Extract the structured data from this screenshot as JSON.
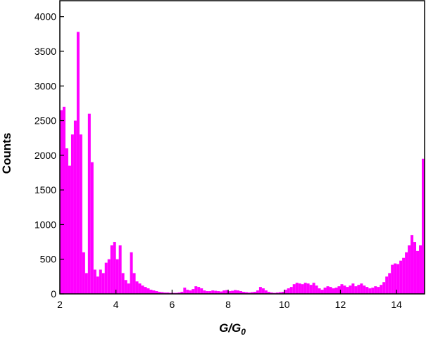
{
  "chart_data": {
    "type": "histogram",
    "xlabel": {
      "text": "G/G",
      "subscript": "0"
    },
    "ylabel": "Counts",
    "color": "#ff00ff",
    "xlim": [
      2,
      15
    ],
    "ylim": [
      0,
      4230
    ],
    "xticks": [
      2,
      4,
      6,
      8,
      10,
      12,
      14
    ],
    "yticks": [
      0,
      500,
      1000,
      1500,
      2000,
      2500,
      3000,
      3500,
      4000
    ],
    "bins": [
      2,
      2.1,
      2.2,
      2.3,
      2.4,
      2.5,
      2.6,
      2.7,
      2.8,
      2.9,
      3,
      3.1,
      3.2,
      3.3,
      3.4,
      3.5,
      3.6,
      3.7,
      3.8,
      3.9,
      4,
      4.1,
      4.2,
      4.3,
      4.4,
      4.5,
      4.6,
      4.7,
      4.8,
      4.9,
      5,
      5.1,
      5.2,
      5.3,
      5.4,
      5.5,
      5.6,
      5.7,
      5.8,
      5.9,
      6,
      6.1,
      6.2,
      6.3,
      6.4,
      6.5,
      6.6,
      6.7,
      6.8,
      6.9,
      7,
      7.1,
      7.2,
      7.3,
      7.4,
      7.5,
      7.6,
      7.7,
      7.8,
      7.9,
      8,
      8.1,
      8.2,
      8.3,
      8.4,
      8.5,
      8.6,
      8.7,
      8.8,
      8.9,
      9,
      9.1,
      9.2,
      9.3,
      9.4,
      9.5,
      9.6,
      9.7,
      9.8,
      9.9,
      10,
      10.1,
      10.2,
      10.3,
      10.4,
      10.5,
      10.6,
      10.7,
      10.8,
      10.9,
      11,
      11.1,
      11.2,
      11.3,
      11.4,
      11.5,
      11.6,
      11.7,
      11.8,
      11.9,
      12,
      12.1,
      12.2,
      12.3,
      12.4,
      12.5,
      12.6,
      12.7,
      12.8,
      12.9,
      13,
      13.1,
      13.2,
      13.3,
      13.4,
      13.5,
      13.6,
      13.7,
      13.8,
      13.9,
      14,
      14.1,
      14.2,
      14.3,
      14.4,
      14.5,
      14.6,
      14.7,
      14.8,
      14.9,
      15
    ],
    "values": [
      2650,
      2700,
      2100,
      1850,
      2300,
      2500,
      3780,
      2300,
      600,
      300,
      2600,
      1900,
      350,
      250,
      350,
      300,
      450,
      500,
      700,
      750,
      500,
      700,
      300,
      200,
      150,
      600,
      300,
      180,
      150,
      120,
      100,
      80,
      60,
      50,
      40,
      30,
      25,
      20,
      20,
      15,
      15,
      15,
      20,
      30,
      90,
      60,
      50,
      70,
      110,
      100,
      80,
      50,
      40,
      40,
      50,
      45,
      40,
      35,
      50,
      55,
      40,
      45,
      55,
      50,
      40,
      30,
      25,
      20,
      25,
      30,
      50,
      100,
      80,
      50,
      30,
      20,
      15,
      20,
      25,
      30,
      60,
      80,
      100,
      140,
      160,
      150,
      140,
      160,
      150,
      130,
      160,
      120,
      80,
      60,
      90,
      110,
      100,
      80,
      90,
      110,
      140,
      120,
      100,
      120,
      150,
      110,
      130,
      150,
      120,
      100,
      80,
      90,
      110,
      100,
      130,
      170,
      250,
      300,
      420,
      440,
      430,
      480,
      520,
      600,
      700,
      850,
      750,
      620,
      700,
      1950
    ]
  }
}
